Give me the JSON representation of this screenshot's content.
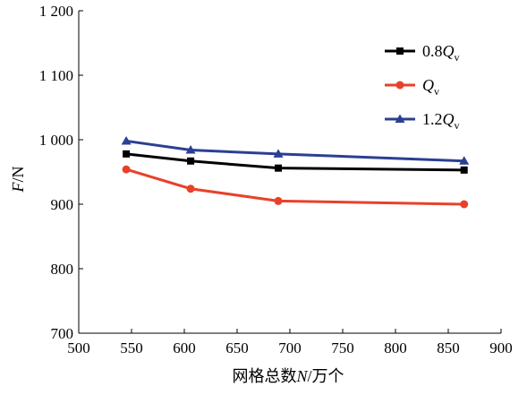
{
  "chart_data": {
    "type": "line",
    "title": "",
    "xlabel": "网格总数N/万个",
    "ylabel": "F/N",
    "xlim": [
      500,
      900
    ],
    "ylim": [
      700,
      1200
    ],
    "x_ticks": [
      "500",
      "550",
      "600",
      "650",
      "700",
      "750",
      "800",
      "850",
      "900"
    ],
    "y_ticks": [
      "700",
      "800",
      "900",
      "1 000",
      "1 100",
      "1 200"
    ],
    "grid": false,
    "legend_position": "top-right",
    "x": [
      545,
      606,
      689,
      865
    ],
    "series": [
      {
        "name": "0.8Qv",
        "legend_main": "0.8Q",
        "legend_sub": "v",
        "color": "#000000",
        "marker": "square",
        "values": [
          978,
          967,
          956,
          953
        ]
      },
      {
        "name": "Qv",
        "legend_main": "Q",
        "legend_sub": "v",
        "color": "#e8412a",
        "marker": "circle",
        "values": [
          954,
          924,
          905,
          900
        ]
      },
      {
        "name": "1.2Qv",
        "legend_main": "1.2Q",
        "legend_sub": "v",
        "color": "#2b3f93",
        "marker": "triangle",
        "values": [
          998,
          984,
          978,
          967
        ]
      }
    ]
  }
}
